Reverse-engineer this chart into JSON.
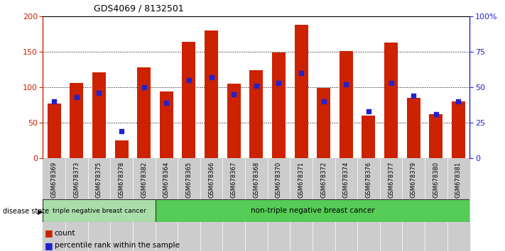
{
  "title": "GDS4069 / 8132501",
  "samples": [
    "GSM678369",
    "GSM678373",
    "GSM678375",
    "GSM678378",
    "GSM678382",
    "GSM678364",
    "GSM678365",
    "GSM678366",
    "GSM678367",
    "GSM678368",
    "GSM678370",
    "GSM678371",
    "GSM678372",
    "GSM678374",
    "GSM678376",
    "GSM678377",
    "GSM678379",
    "GSM678380",
    "GSM678381"
  ],
  "counts": [
    77,
    106,
    121,
    25,
    128,
    94,
    164,
    180,
    105,
    124,
    149,
    188,
    99,
    151,
    60,
    163,
    85,
    62,
    80
  ],
  "percentile_pct": [
    40,
    43,
    46,
    19,
    50,
    39,
    55,
    57,
    45,
    51,
    53,
    60,
    40,
    52,
    33,
    53,
    44,
    31,
    40
  ],
  "bar_color": "#cc2200",
  "blue_color": "#2222cc",
  "n_triple_neg": 5,
  "triple_neg_label": "triple negative breast cancer",
  "non_triple_neg_label": "non-triple negative breast cancer",
  "triple_neg_color": "#aaddaa",
  "non_triple_neg_color": "#55cc55",
  "disease_state_label": "disease state",
  "legend_count": "count",
  "legend_percentile": "percentile rank within the sample",
  "ylim_left": [
    0,
    200
  ],
  "ylim_right": [
    0,
    100
  ],
  "yticks_left": [
    0,
    50,
    100,
    150,
    200
  ],
  "yticks_right": [
    0,
    25,
    50,
    75,
    100
  ],
  "ytick_labels_right": [
    "0",
    "25",
    "50",
    "75",
    "100%"
  ],
  "grid_lines": [
    50,
    100,
    150
  ],
  "bg_color": "#ffffff"
}
